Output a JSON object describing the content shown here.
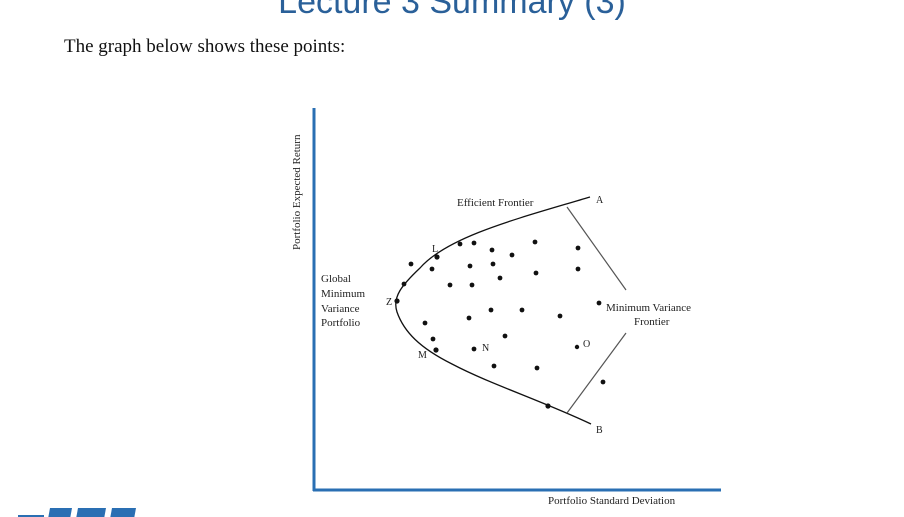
{
  "slide": {
    "title": "Lecture 3 Summary (3)",
    "intro": "The graph below shows these points:"
  },
  "figure": {
    "y_axis_label": "Portfolio Expected Return",
    "x_axis_label": "Portfolio Standard Deviation",
    "efficient_frontier_label": "Efficient Frontier",
    "min_variance_frontier_label": [
      "Minimum Variance",
      "Frontier"
    ],
    "gmv_label": [
      "Global",
      "Minimum",
      "Variance",
      "Portfolio"
    ],
    "points": {
      "A": "A",
      "B": "B",
      "L": "L",
      "M": "M",
      "N": "N",
      "O": "O",
      "Z": "Z"
    }
  },
  "colors": {
    "title": "#2a6099",
    "axis": "#2a6fb3",
    "curve": "#111111",
    "logo": "#2a6fb3"
  },
  "logo": {
    "name": "institution-logo"
  }
}
